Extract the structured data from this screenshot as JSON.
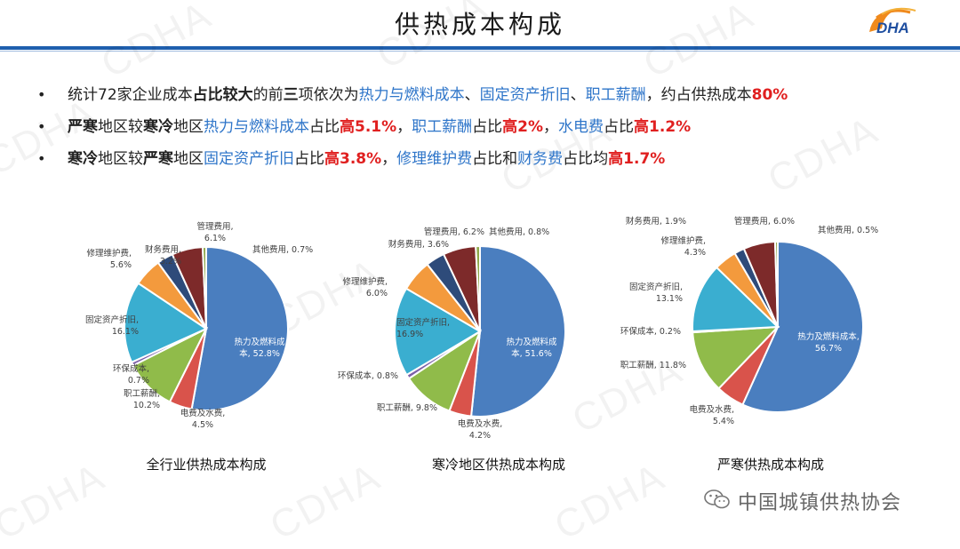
{
  "title": "供热成本构成",
  "logo_text": "DHA",
  "watermark": "CDHA",
  "footer": "中国城镇供热协会",
  "bullets": [
    [
      {
        "t": "统计72家企业成本"
      },
      {
        "t": "占比较大",
        "s": "bold"
      },
      {
        "t": "的前"
      },
      {
        "t": "三",
        "s": "bold"
      },
      {
        "t": "项依次为"
      },
      {
        "t": "热力与燃料成本",
        "s": "blue"
      },
      {
        "t": "、"
      },
      {
        "t": "固定资产折旧",
        "s": "blue"
      },
      {
        "t": "、"
      },
      {
        "t": "职工薪酬",
        "s": "blue"
      },
      {
        "t": "，约占供热成本"
      },
      {
        "t": "80%",
        "s": "red"
      }
    ],
    [
      {
        "t": "严寒",
        "s": "bold"
      },
      {
        "t": "地区较"
      },
      {
        "t": "寒冷",
        "s": "bold"
      },
      {
        "t": "地区"
      },
      {
        "t": "热力与燃料成本",
        "s": "blue"
      },
      {
        "t": "占比"
      },
      {
        "t": "高5.1%",
        "s": "red"
      },
      {
        "t": "，"
      },
      {
        "t": "职工薪酬",
        "s": "blue"
      },
      {
        "t": "占比"
      },
      {
        "t": "高2%",
        "s": "red"
      },
      {
        "t": "，"
      },
      {
        "t": "水电费",
        "s": "blue"
      },
      {
        "t": "占比"
      },
      {
        "t": "高1.2%",
        "s": "red"
      }
    ],
    [
      {
        "t": "寒冷",
        "s": "bold"
      },
      {
        "t": "地区较"
      },
      {
        "t": "严寒",
        "s": "bold"
      },
      {
        "t": "地区"
      },
      {
        "t": "固定资产折旧",
        "s": "blue"
      },
      {
        "t": "占比"
      },
      {
        "t": "高3.8%",
        "s": "red"
      },
      {
        "t": "，"
      },
      {
        "t": "修理维护费",
        "s": "blue"
      },
      {
        "t": "占比和"
      },
      {
        "t": "财务费",
        "s": "blue"
      },
      {
        "t": "占比均"
      },
      {
        "t": "高1.7%",
        "s": "red"
      }
    ]
  ],
  "colors": [
    "#4a7ebf",
    "#d9534b",
    "#90bb4a",
    "#7c5fa8",
    "#3aaed0",
    "#f39a3d",
    "#2e4b7a",
    "#7d2a2a",
    "#8fa84a"
  ],
  "chart_data": [
    {
      "type": "pie",
      "title": "全行业供热成本构成",
      "categories": [
        "热力及燃料成本",
        "电费及水费",
        "职工薪酬",
        "环保成本",
        "固定资产折旧",
        "修理维护费",
        "财务费用",
        "管理费用",
        "其他费用"
      ],
      "values": [
        52.8,
        4.5,
        10.2,
        0.7,
        16.1,
        5.6,
        3.2,
        6.1,
        0.7
      ],
      "labels": [
        "热力及燃料成\n本, 52.8%",
        "电费及水费,\n4.5%",
        "职工薪酬,\n10.2%",
        "环保成本,\n0.7%",
        "固定资产折旧,\n16.1%",
        "修理维护费,\n5.6%",
        "财务费用,\n3.2%",
        "管理费用,\n6.1%",
        "其他费用, 0.7%"
      ]
    },
    {
      "type": "pie",
      "title": "寒冷地区供热成本构成",
      "categories": [
        "热力及燃料成本",
        "电费及水费",
        "职工薪酬",
        "环保成本",
        "固定资产折旧",
        "修理维护费",
        "财务费用",
        "管理费用",
        "其他费用"
      ],
      "values": [
        51.6,
        4.2,
        9.8,
        0.8,
        16.9,
        6.0,
        3.6,
        6.2,
        0.8
      ],
      "labels": [
        "热力及燃料成\n本, 51.6%",
        "电费及水费,\n4.2%",
        "职工薪酬, 9.8%",
        "环保成本, 0.8%",
        "固定资产折旧,\n16.9%",
        "修理维护费,\n6.0%",
        "财务费用, 3.6%",
        "管理费用, 6.2%",
        "其他费用, 0.8%"
      ]
    },
    {
      "type": "pie",
      "title": "严寒供热成本构成",
      "categories": [
        "热力及燃料成本",
        "电费及水费",
        "职工薪酬",
        "环保成本",
        "固定资产折旧",
        "修理维护费",
        "财务费用",
        "管理费用",
        "其他费用"
      ],
      "values": [
        56.7,
        5.4,
        11.8,
        0.2,
        13.1,
        4.3,
        1.9,
        6.0,
        0.5
      ],
      "labels": [
        "热力及燃料成本,\n56.7%",
        "电费及水费,\n5.4%",
        "职工薪酬, 11.8%",
        "环保成本, 0.2%",
        "固定资产折旧,\n13.1%",
        "修理维护费,\n4.3%",
        "财务费用, 1.9%",
        "管理费用, 6.0%",
        "其他费用, 0.5%"
      ]
    }
  ]
}
